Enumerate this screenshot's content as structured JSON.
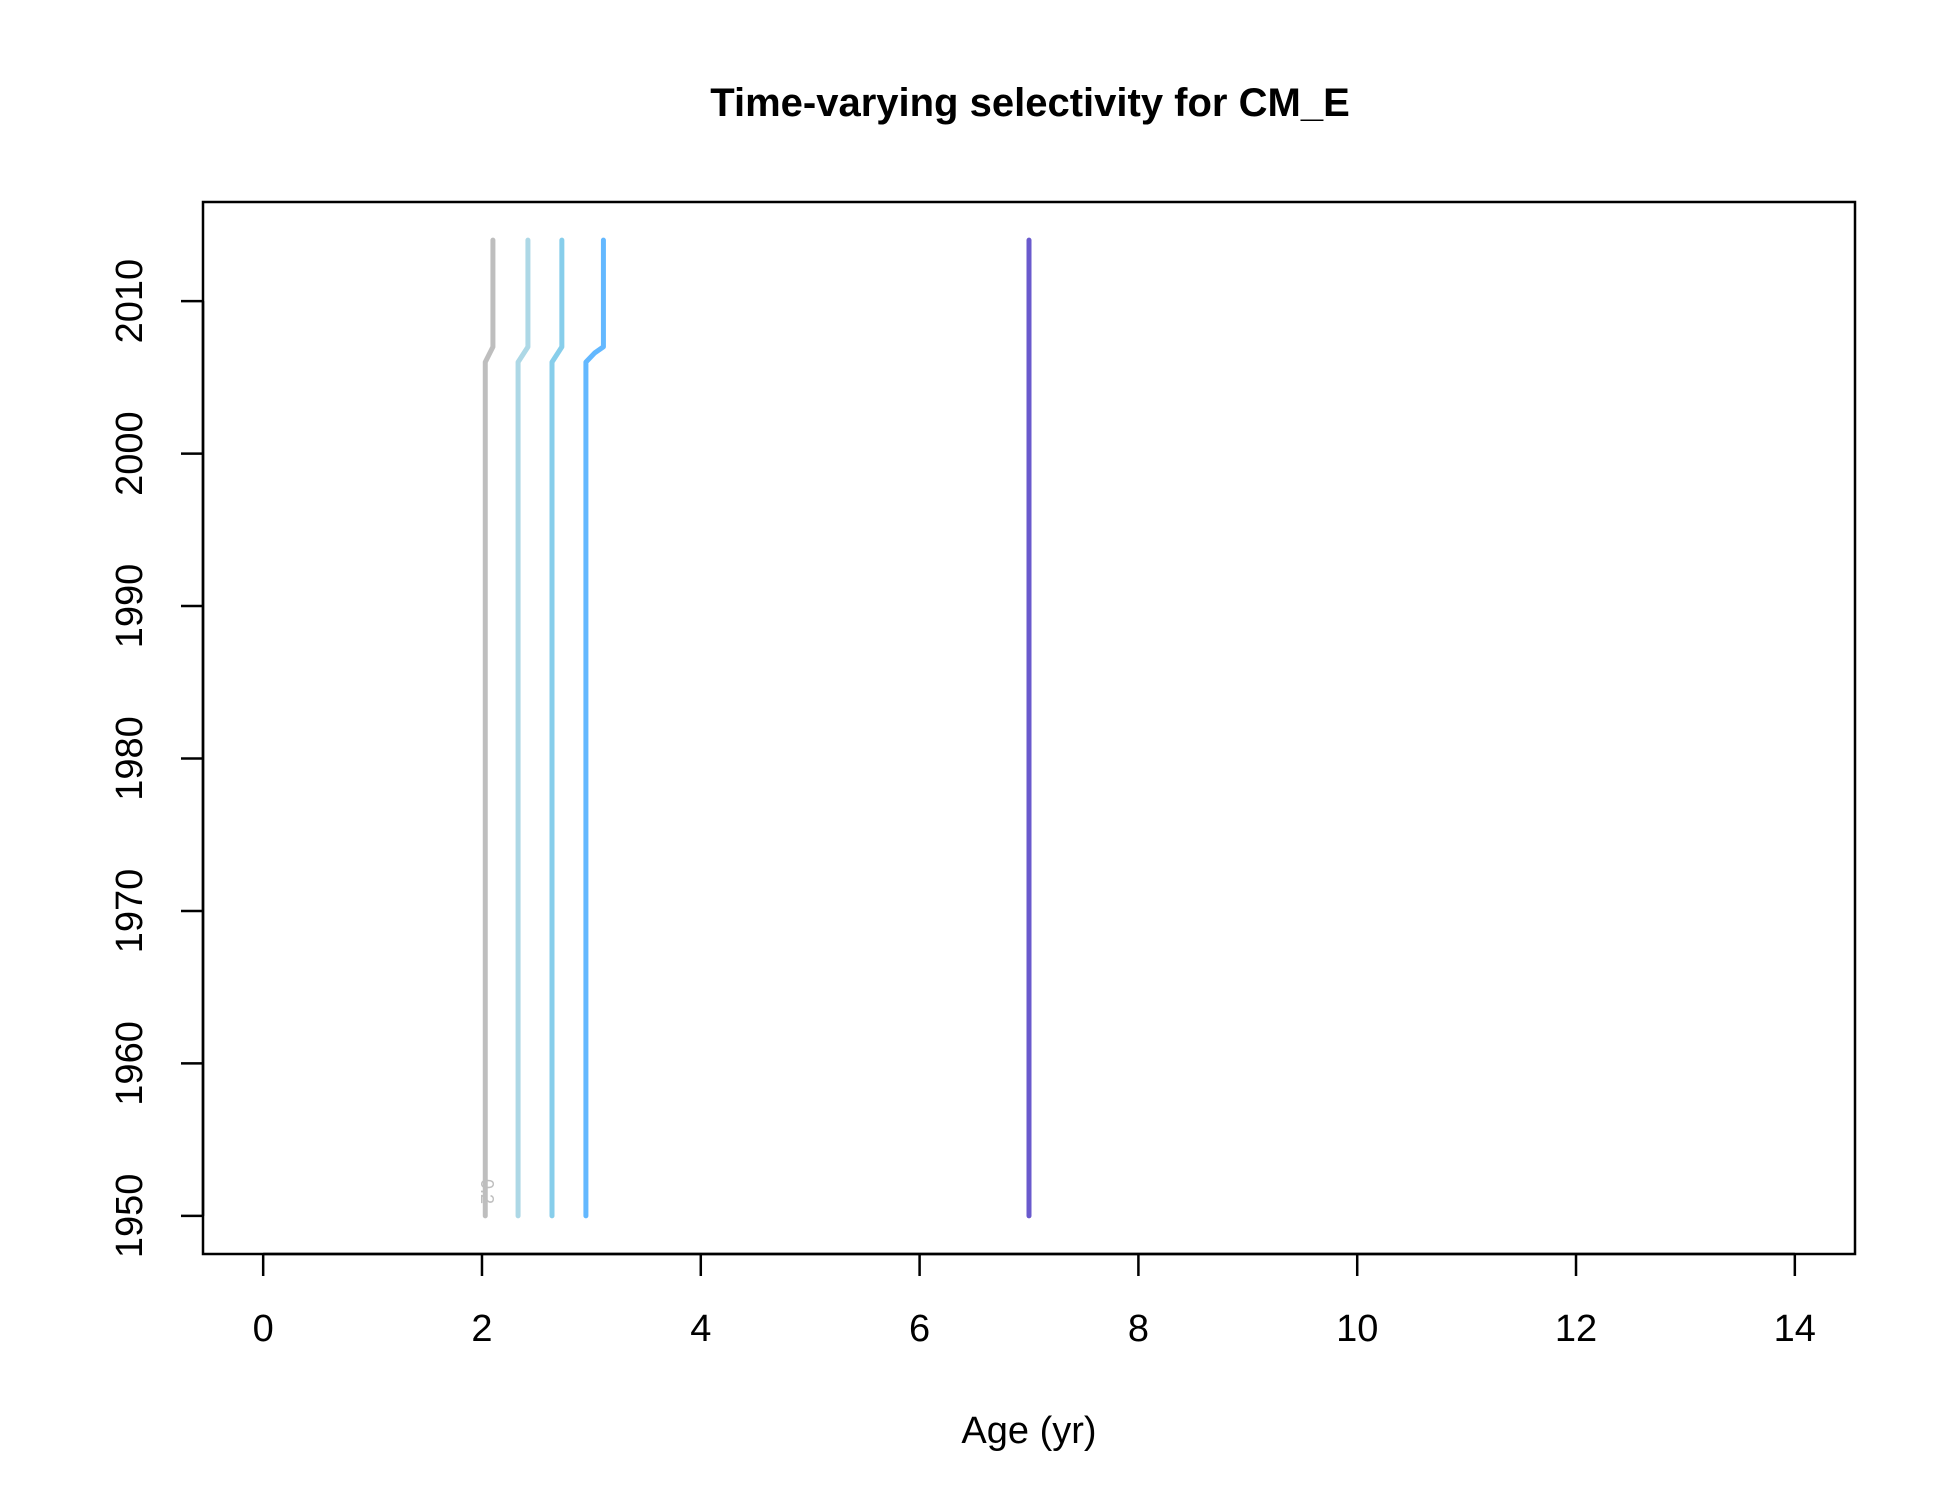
{
  "chart_data": {
    "type": "line",
    "title": "Time-varying selectivity for CM_E",
    "xlabel": "Age (yr)",
    "ylabel": "",
    "xlim": [
      -0.55,
      14.55
    ],
    "ylim": [
      1947.5,
      2016.5
    ],
    "x_ticks": [
      0,
      2,
      4,
      6,
      8,
      10,
      12,
      14
    ],
    "y_ticks": [
      1950,
      1960,
      1970,
      1980,
      1990,
      2000,
      2010
    ],
    "grid": false,
    "series": [
      {
        "color": "#BEBEBE",
        "label": "0.2",
        "points": [
          [
            2.03,
            1950
          ],
          [
            2.03,
            2006
          ],
          [
            2.1,
            2007
          ],
          [
            2.1,
            2014
          ]
        ]
      },
      {
        "color": "#ADD8E6",
        "points": [
          [
            2.33,
            1950
          ],
          [
            2.33,
            2006
          ],
          [
            2.42,
            2007
          ],
          [
            2.42,
            2014
          ]
        ]
      },
      {
        "color": "#87CEEB",
        "points": [
          [
            2.64,
            1950
          ],
          [
            2.64,
            2006
          ],
          [
            2.73,
            2007
          ],
          [
            2.73,
            2014
          ]
        ]
      },
      {
        "color": "#63B8FF",
        "points": [
          [
            2.95,
            1950
          ],
          [
            2.95,
            2006
          ],
          [
            3.03,
            2006.6
          ],
          [
            3.11,
            2007
          ],
          [
            3.11,
            2014
          ]
        ]
      },
      {
        "color": "#6A5ACD",
        "points": [
          [
            7.0,
            1950
          ],
          [
            7.0,
            2014
          ]
        ]
      }
    ],
    "contour_labels": [
      {
        "text": "0.2",
        "x": 1.99,
        "y": 1951.6,
        "color": "#BEBEBE"
      }
    ]
  }
}
